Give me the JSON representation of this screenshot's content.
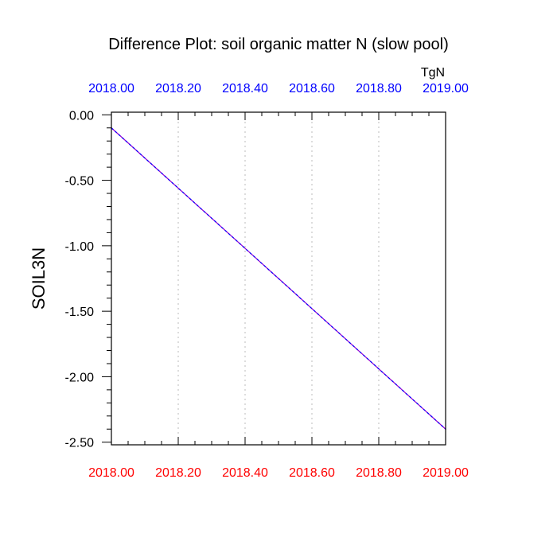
{
  "chart_data": {
    "type": "line",
    "title": "Difference Plot: soil organic matter N (slow pool)",
    "units": "TgN",
    "ylabel": "SOIL3N",
    "xlabel": "",
    "xlim": [
      2018.0,
      2019.0
    ],
    "ylim": [
      -2.52,
      0.02
    ],
    "x_ticks": [
      2018.0,
      2018.2,
      2018.4,
      2018.6,
      2018.8,
      2019.0
    ],
    "x_tick_labels": [
      "2018.00",
      "2018.20",
      "2018.40",
      "2018.60",
      "2018.80",
      "2019.00"
    ],
    "y_ticks": [
      0.0,
      -0.5,
      -1.0,
      -1.5,
      -2.0,
      -2.5
    ],
    "y_tick_labels": [
      "0.00",
      "-0.50",
      "-1.00",
      "-1.50",
      "-2.00",
      "-2.50"
    ],
    "y_minor_step": 0.1,
    "x_minor_step": 0.05,
    "grid_x": true,
    "grid_y": false,
    "series": [
      {
        "x": [
          2018.0,
          2019.0
        ],
        "y": [
          -0.1,
          -2.4
        ],
        "color": "#9900cc",
        "color2": "#0000ff",
        "style": "dashed"
      }
    ],
    "colors": {
      "top_axis_labels": "#0000ff",
      "bottom_axis_labels": "#ff0000",
      "grid": "#bbbbbb"
    }
  }
}
